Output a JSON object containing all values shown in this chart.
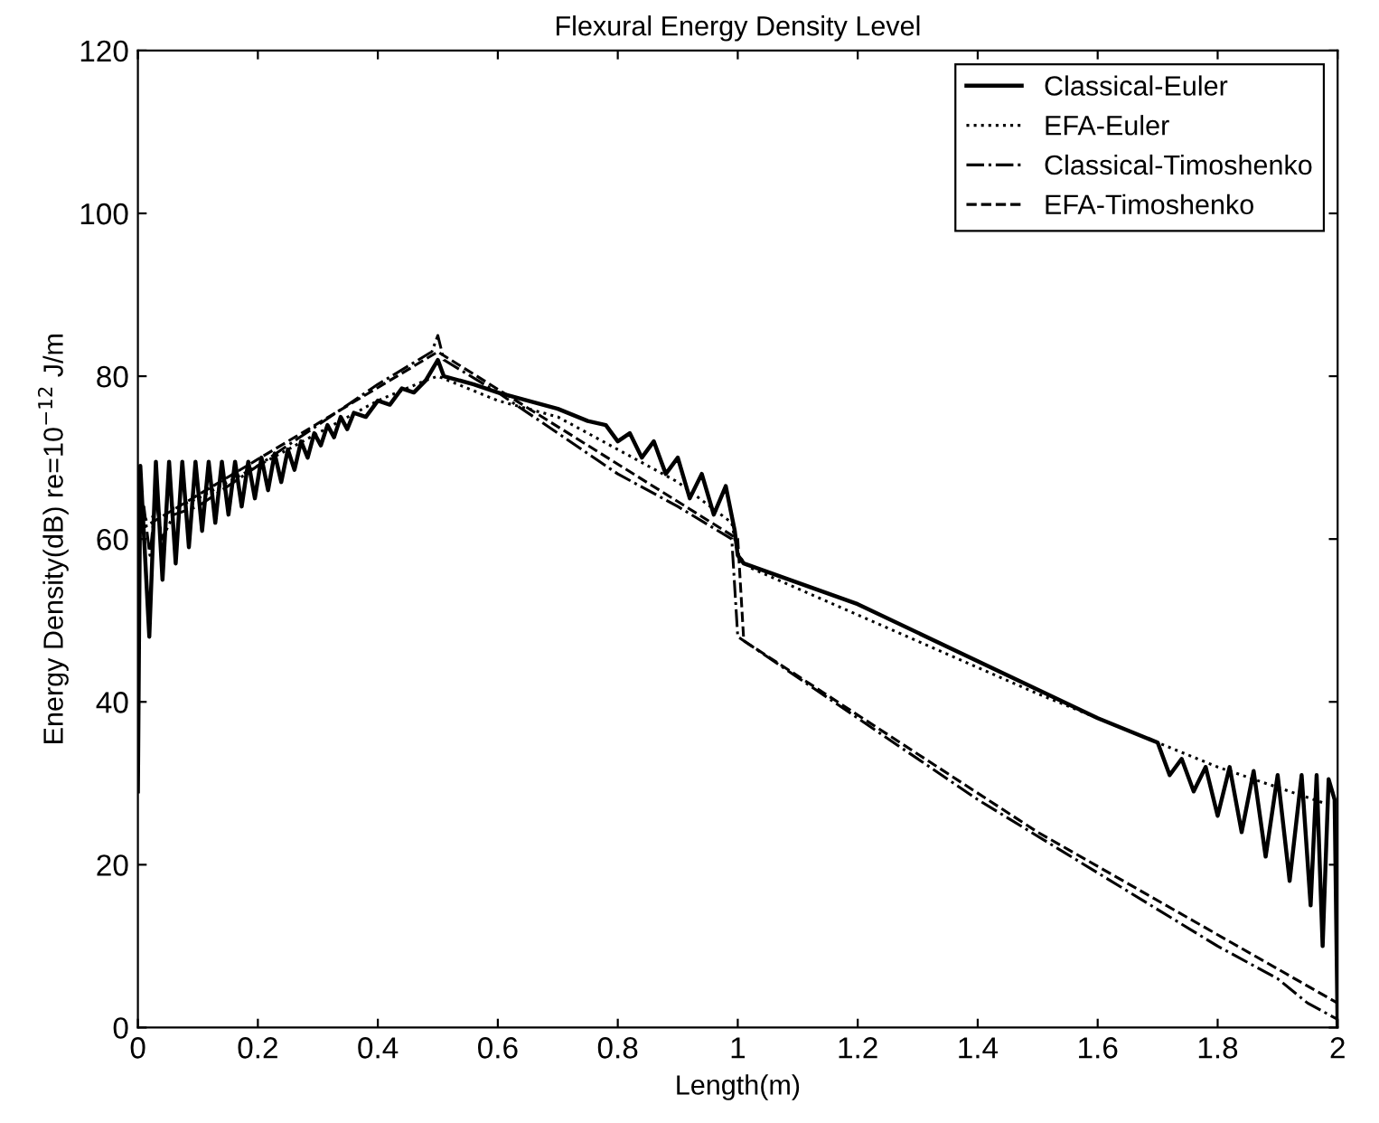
{
  "chart_data": {
    "type": "line",
    "title": "Flexural Energy Density Level",
    "xlabel": "Length(m)",
    "ylabel": "Energy Density(dB) re=10$^{−12}$ J/m",
    "xlim": [
      0,
      2
    ],
    "ylim": [
      0,
      120
    ],
    "xticks": [
      0,
      0.2,
      0.4,
      0.6,
      0.8,
      1,
      1.2,
      1.4,
      1.6,
      1.8,
      2
    ],
    "yticks": [
      0,
      20,
      40,
      60,
      80,
      100,
      120
    ],
    "grid": false,
    "legend": "top right",
    "marker": "none",
    "series": [
      {
        "name": "Classical-Euler",
        "color": "#000000",
        "line_style": "solid",
        "x": [
          0,
          0.004,
          0.019,
          0.03,
          0.041,
          0.052,
          0.063,
          0.074,
          0.085,
          0.096,
          0.107,
          0.118,
          0.129,
          0.14,
          0.151,
          0.162,
          0.173,
          0.184,
          0.195,
          0.206,
          0.217,
          0.228,
          0.239,
          0.25,
          0.261,
          0.272,
          0.283,
          0.294,
          0.305,
          0.316,
          0.327,
          0.338,
          0.349,
          0.36,
          0.38,
          0.4,
          0.42,
          0.44,
          0.46,
          0.48,
          0.5,
          0.51,
          0.56,
          0.6,
          0.65,
          0.7,
          0.75,
          0.78,
          0.8,
          0.82,
          0.84,
          0.86,
          0.88,
          0.9,
          0.92,
          0.94,
          0.96,
          0.98,
          0.995,
          1.0,
          1.01,
          1.2,
          1.4,
          1.6,
          1.7,
          1.72,
          1.74,
          1.76,
          1.78,
          1.8,
          1.82,
          1.84,
          1.86,
          1.88,
          1.9,
          1.92,
          1.94,
          1.955,
          1.965,
          1.975,
          1.985,
          1.995,
          2.0
        ],
        "values": [
          29,
          69,
          48,
          69.5,
          55,
          69.5,
          57,
          69.5,
          59,
          69.5,
          61,
          69.5,
          62,
          69.5,
          63,
          69.5,
          64,
          69.5,
          65,
          70,
          66,
          70.5,
          67,
          71,
          68.5,
          72,
          70,
          73,
          71.5,
          74,
          72.5,
          75,
          73.5,
          75.5,
          75,
          77,
          76.5,
          78.5,
          78,
          79.5,
          82,
          80,
          79,
          78,
          77,
          76,
          74.5,
          74,
          72,
          73,
          70,
          72,
          68,
          70,
          65,
          68,
          63,
          66.5,
          61,
          58,
          57,
          52,
          45,
          38,
          35,
          31,
          33,
          29,
          32,
          26,
          32,
          24,
          31.5,
          21,
          31,
          18,
          31,
          15,
          31,
          10,
          30.5,
          28,
          0
        ]
      },
      {
        "name": "EFA-Euler",
        "color": "#000000",
        "line_style": "dotted",
        "x": [
          0,
          0.1,
          0.2,
          0.3,
          0.4,
          0.48,
          0.5,
          0.6,
          0.7,
          0.8,
          0.9,
          0.99,
          1.0,
          1.02,
          1.5,
          1.8,
          2.0
        ],
        "values": [
          62,
          65,
          69,
          73,
          77,
          79.5,
          80,
          77,
          75,
          71,
          67,
          62,
          58,
          56.5,
          41,
          32,
          27
        ]
      },
      {
        "name": "Classical-Timoshenko",
        "color": "#000000",
        "line_style": "dashdot",
        "x": [
          0,
          0.01,
          0.02,
          0.03,
          0.04,
          0.06,
          0.1,
          0.2,
          0.3,
          0.4,
          0.49,
          0.5,
          0.51,
          0.6,
          0.7,
          0.8,
          0.9,
          0.99,
          1.0,
          1.02,
          1.2,
          1.4,
          1.6,
          1.8,
          1.9,
          1.95,
          2.0
        ],
        "values": [
          60,
          64,
          58,
          65,
          60,
          63,
          64,
          69,
          74,
          79,
          83,
          85,
          82,
          78,
          73,
          68,
          64,
          60,
          48,
          47,
          38,
          28,
          19,
          10,
          6,
          3,
          1
        ]
      },
      {
        "name": "EFA-Timoshenko",
        "color": "#000000",
        "line_style": "dashed",
        "x": [
          0,
          0.5,
          1.0,
          1.01,
          1.5,
          2.0
        ],
        "values": [
          61,
          83,
          60,
          47.5,
          24,
          3
        ]
      }
    ]
  }
}
